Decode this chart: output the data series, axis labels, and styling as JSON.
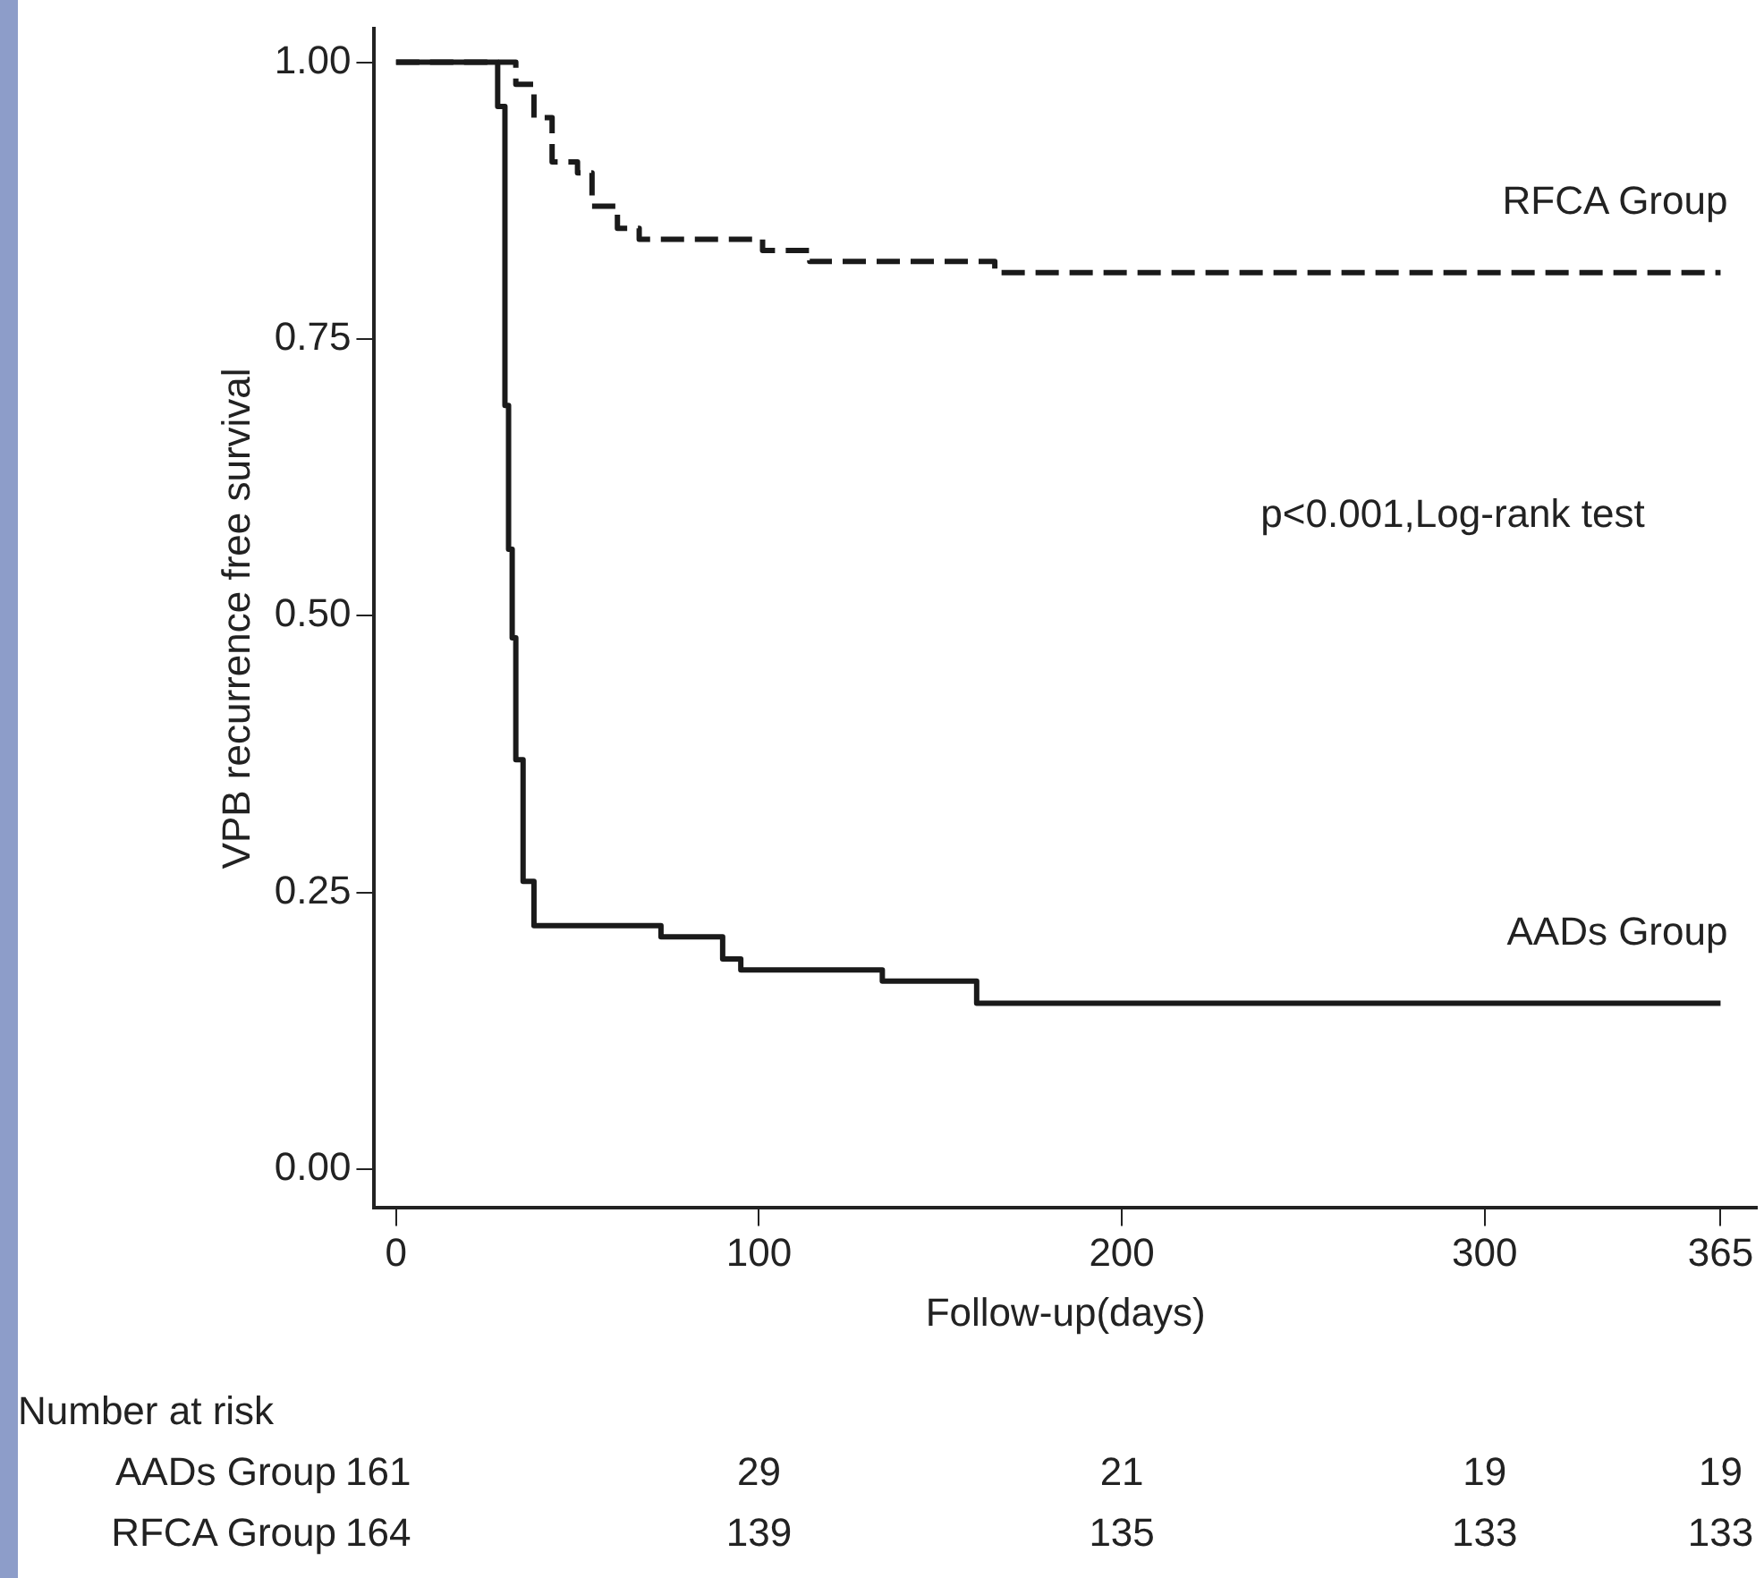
{
  "chart_data": {
    "type": "step",
    "xlabel": "Follow-up(days)",
    "ylabel": "VPB recurrence free survival",
    "xlim": [
      -6,
      375
    ],
    "ylim": [
      -0.035,
      1.03
    ],
    "xticks": [
      0,
      100,
      200,
      300,
      365
    ],
    "yticks": [
      {
        "value": 0,
        "label": "0.00"
      },
      {
        "value": 0.25,
        "label": "0.25"
      },
      {
        "value": 0.5,
        "label": "0.50"
      },
      {
        "value": 0.75,
        "label": "0.75"
      },
      {
        "value": 1,
        "label": "1.00"
      }
    ],
    "grid": false,
    "legend": false,
    "series": [
      {
        "name": "RFCA Group",
        "color": "#1a1a1a",
        "line_style": "dashed",
        "x": [
          0,
          29,
          33,
          38,
          43,
          50,
          54,
          61,
          67,
          101,
          110,
          114,
          165,
          245,
          365
        ],
        "values": [
          1,
          1,
          0.98,
          0.95,
          0.91,
          0.9,
          0.87,
          0.85,
          0.84,
          0.83,
          0.83,
          0.82,
          0.81,
          0.81,
          0.81
        ]
      },
      {
        "name": "AADs Group",
        "color": "#1a1a1a",
        "line_style": "solid",
        "x": [
          0,
          28,
          30,
          31,
          32,
          33,
          35,
          38,
          73,
          90,
          95,
          134,
          160,
          162,
          227,
          365
        ],
        "values": [
          1,
          0.96,
          0.69,
          0.56,
          0.48,
          0.37,
          0.26,
          0.22,
          0.21,
          0.19,
          0.18,
          0.17,
          0.15,
          0.15,
          0.15,
          0.15
        ]
      }
    ],
    "annotations": [
      "p<0.001,Log-rank test",
      "Number at risk",
      "AADs Group\t161\t29\t21\t19\t19",
      "RFCA Group\t164\t139\t135\t133\t133"
    ]
  }
}
